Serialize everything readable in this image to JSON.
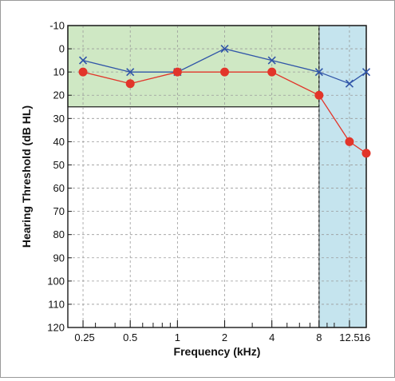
{
  "chart_data": {
    "type": "line",
    "title": "",
    "xlabel": "Frequency (kHz)",
    "ylabel": "Hearing Threshold (dB HL)",
    "x_scale": "log",
    "x_tick_labels": [
      "0.25",
      "0.5",
      "1",
      "2",
      "4",
      "8",
      "12.5",
      "16"
    ],
    "x_ticks": [
      0.25,
      0.5,
      1,
      2,
      4,
      8,
      12.5,
      16
    ],
    "xlim": [
      0.2,
      16
    ],
    "ylim": [
      -10,
      120
    ],
    "y_inverted": true,
    "y_ticks": [
      -10,
      0,
      10,
      20,
      30,
      40,
      50,
      60,
      70,
      80,
      90,
      100,
      110,
      120
    ],
    "grid": true,
    "shaded_regions": [
      {
        "x_from": 0.2,
        "x_to": 8,
        "y_from": -10,
        "y_to": 25,
        "color": "#cfe8c4",
        "edge": "#1a1a1a"
      },
      {
        "x_from": 8,
        "x_to": 16,
        "y_from": -10,
        "y_to": 120,
        "color": "#c5e4ee",
        "edge": "#1a1a1a"
      }
    ],
    "series": [
      {
        "marker": "x",
        "color": "#3055a8",
        "points": [
          {
            "x": 0.25,
            "y": 5
          },
          {
            "x": 0.5,
            "y": 10
          },
          {
            "x": 1,
            "y": 10
          },
          {
            "x": 2,
            "y": 0
          },
          {
            "x": 4,
            "y": 5
          },
          {
            "x": 8,
            "y": 10
          },
          {
            "x": 12.5,
            "y": 15
          },
          {
            "x": 16,
            "y": 10
          }
        ]
      },
      {
        "marker": "circle",
        "color": "#e2352a",
        "points": [
          {
            "x": 0.25,
            "y": 10
          },
          {
            "x": 0.5,
            "y": 15
          },
          {
            "x": 1,
            "y": 10
          },
          {
            "x": 2,
            "y": 10
          },
          {
            "x": 4,
            "y": 10
          },
          {
            "x": 8,
            "y": 20
          },
          {
            "x": 12.5,
            "y": 40
          },
          {
            "x": 16,
            "y": 45
          }
        ]
      }
    ]
  }
}
